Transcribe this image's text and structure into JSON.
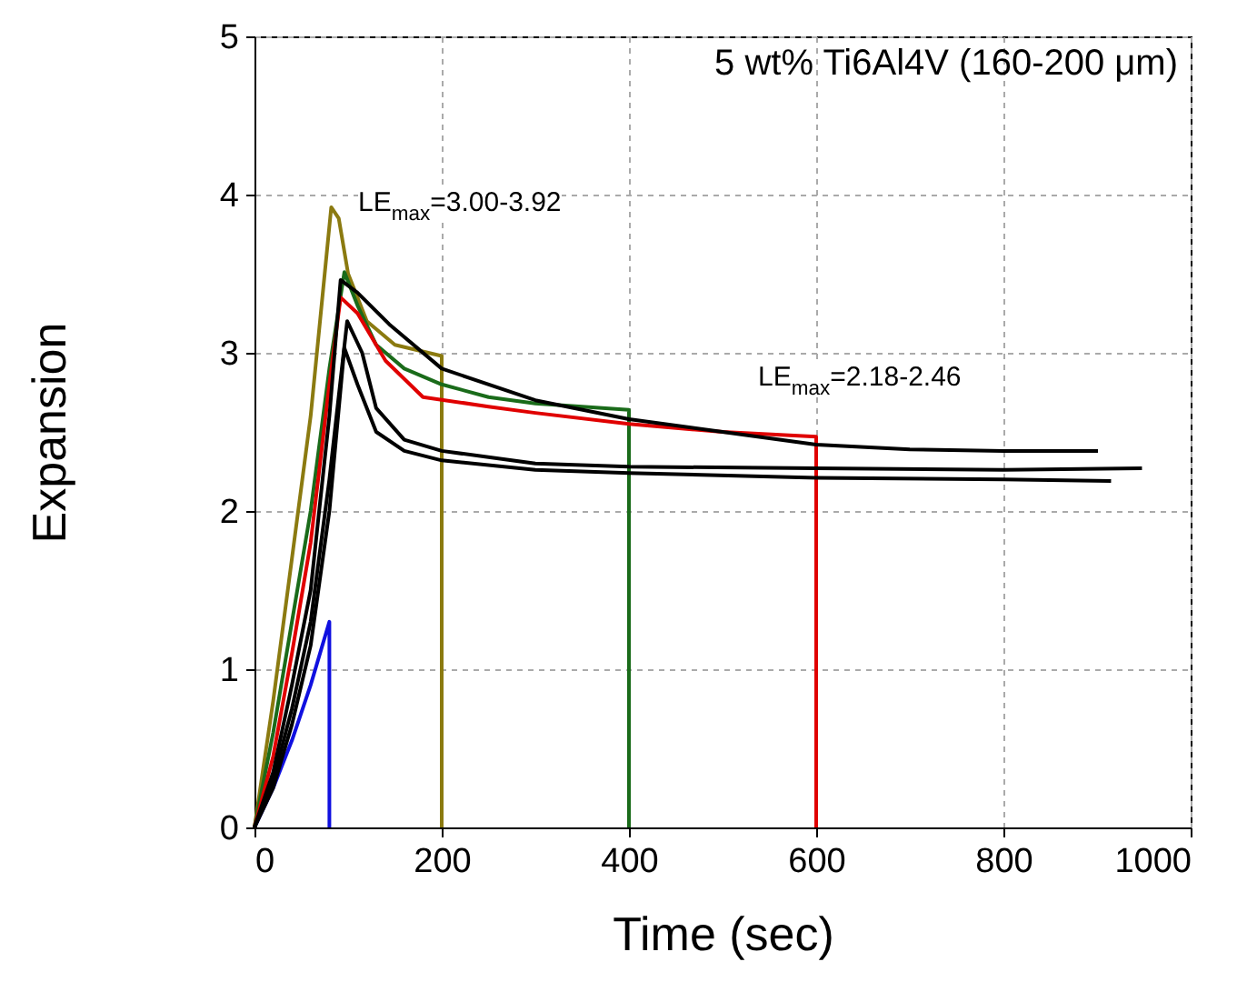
{
  "chart_data": {
    "type": "line",
    "title": "5 wt% Ti6Al4V (160-200 μm)",
    "xlabel": "Time (sec)",
    "ylabel": "Expansion",
    "xlim": [
      0,
      1000
    ],
    "xticks": [
      0,
      200,
      400,
      600,
      800,
      1000
    ],
    "ylim": [
      0,
      5
    ],
    "yticks": [
      0,
      1,
      2,
      3,
      4,
      5
    ],
    "grid": true,
    "marker": "none",
    "line_style": "solid",
    "annotations": [
      "LE$_{max}$=3.00-3.92",
      "LE$_{max}$=2.18-2.46"
    ],
    "series": [
      {
        "color": "#1010e0",
        "x": [
          0,
          20,
          40,
          60,
          80,
          80
        ],
        "values": [
          0,
          0.25,
          0.55,
          0.9,
          1.3,
          0
        ]
      },
      {
        "color": "#8b7a10",
        "x": [
          0,
          20,
          40,
          60,
          75,
          82,
          90,
          100,
          120,
          150,
          200,
          200
        ],
        "values": [
          0,
          0.8,
          1.7,
          2.6,
          3.5,
          3.92,
          3.85,
          3.5,
          3.2,
          3.05,
          2.98,
          0
        ]
      },
      {
        "color": "#1a6b1a",
        "x": [
          0,
          20,
          40,
          60,
          80,
          96,
          110,
          130,
          160,
          200,
          250,
          300,
          350,
          400,
          400
        ],
        "values": [
          0,
          0.6,
          1.3,
          2.0,
          2.9,
          3.51,
          3.3,
          3.05,
          2.9,
          2.8,
          2.72,
          2.68,
          2.66,
          2.64,
          0
        ]
      },
      {
        "color": "#e00000",
        "x": [
          0,
          20,
          40,
          60,
          80,
          92,
          110,
          140,
          180,
          250,
          300,
          400,
          500,
          600,
          600
        ],
        "values": [
          0,
          0.45,
          1.1,
          1.8,
          2.8,
          3.35,
          3.25,
          2.95,
          2.72,
          2.66,
          2.62,
          2.55,
          2.5,
          2.47,
          0
        ]
      },
      {
        "color": "#000000",
        "x": [
          0,
          20,
          40,
          60,
          80,
          92,
          110,
          144,
          200,
          300,
          400,
          500,
          600,
          700,
          800,
          901
        ],
        "values": [
          0,
          0.35,
          0.9,
          1.5,
          2.6,
          3.46,
          3.38,
          3.18,
          2.9,
          2.7,
          2.58,
          2.5,
          2.42,
          2.39,
          2.38,
          2.38
        ]
      },
      {
        "color": "#000000",
        "x": [
          0,
          20,
          40,
          60,
          80,
          99,
          115,
          130,
          160,
          200,
          300,
          400,
          600,
          800,
          948
        ],
        "values": [
          0,
          0.3,
          0.75,
          1.3,
          2.2,
          3.2,
          3.0,
          2.65,
          2.45,
          2.38,
          2.3,
          2.28,
          2.27,
          2.26,
          2.27
        ]
      },
      {
        "color": "#000000",
        "x": [
          0,
          20,
          40,
          60,
          80,
          96,
          110,
          130,
          160,
          200,
          300,
          400,
          600,
          800,
          915
        ],
        "values": [
          0,
          0.25,
          0.65,
          1.15,
          2.0,
          3.03,
          2.8,
          2.5,
          2.38,
          2.32,
          2.26,
          2.24,
          2.21,
          2.2,
          2.19
        ]
      }
    ]
  }
}
